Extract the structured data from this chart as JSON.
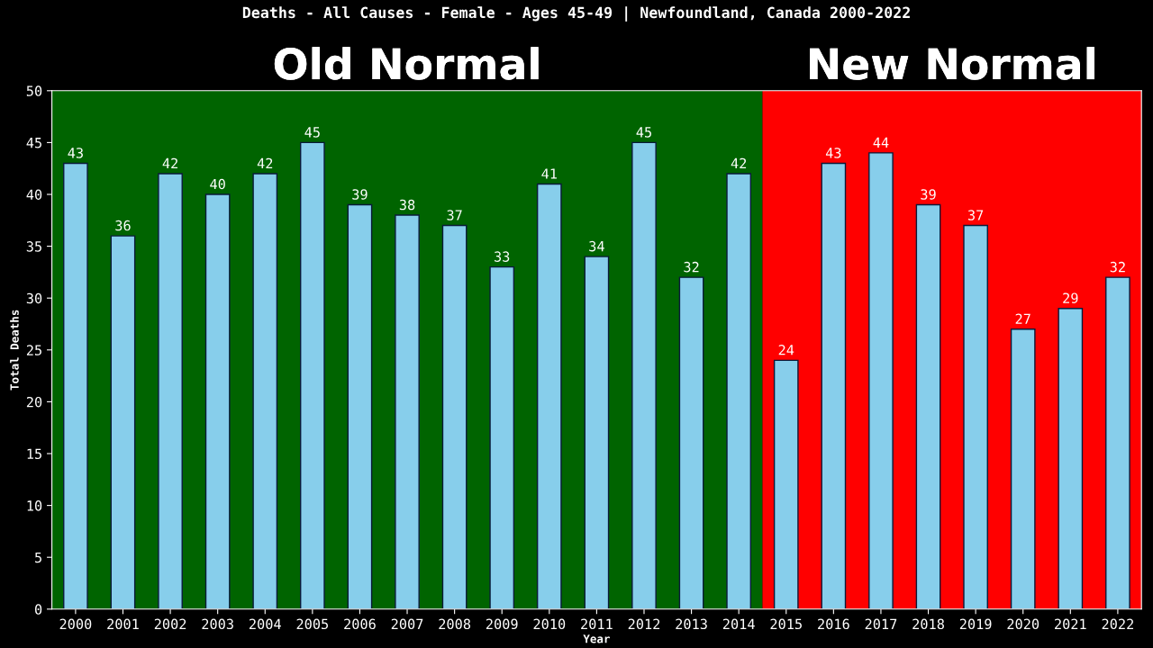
{
  "chart_data": {
    "type": "bar",
    "title": "Deaths - All Causes - Female - Ages 45-49 | Newfoundland, Canada 2000-2022",
    "xlabel": "Year",
    "ylabel": "Total Deaths",
    "categories": [
      "2000",
      "2001",
      "2002",
      "2003",
      "2004",
      "2005",
      "2006",
      "2007",
      "2008",
      "2009",
      "2010",
      "2011",
      "2012",
      "2013",
      "2014",
      "2015",
      "2016",
      "2017",
      "2018",
      "2019",
      "2020",
      "2021",
      "2022"
    ],
    "values": [
      43,
      36,
      42,
      40,
      42,
      45,
      39,
      38,
      37,
      33,
      41,
      34,
      45,
      32,
      42,
      24,
      43,
      44,
      39,
      37,
      27,
      29,
      32
    ],
    "color": "#87ceeb",
    "ylim": [
      0,
      50
    ],
    "yticks": [
      0,
      5,
      10,
      15,
      20,
      25,
      30,
      35,
      40,
      45,
      50
    ],
    "grid": false,
    "data_labels": true,
    "bands": [
      {
        "axis": "x",
        "from": "2000",
        "to": "2014",
        "label": "Old Normal",
        "color": "#006400"
      },
      {
        "axis": "x",
        "from": "2015",
        "to": "2022",
        "label": "New Normal",
        "color": "#ff0000"
      }
    ]
  }
}
